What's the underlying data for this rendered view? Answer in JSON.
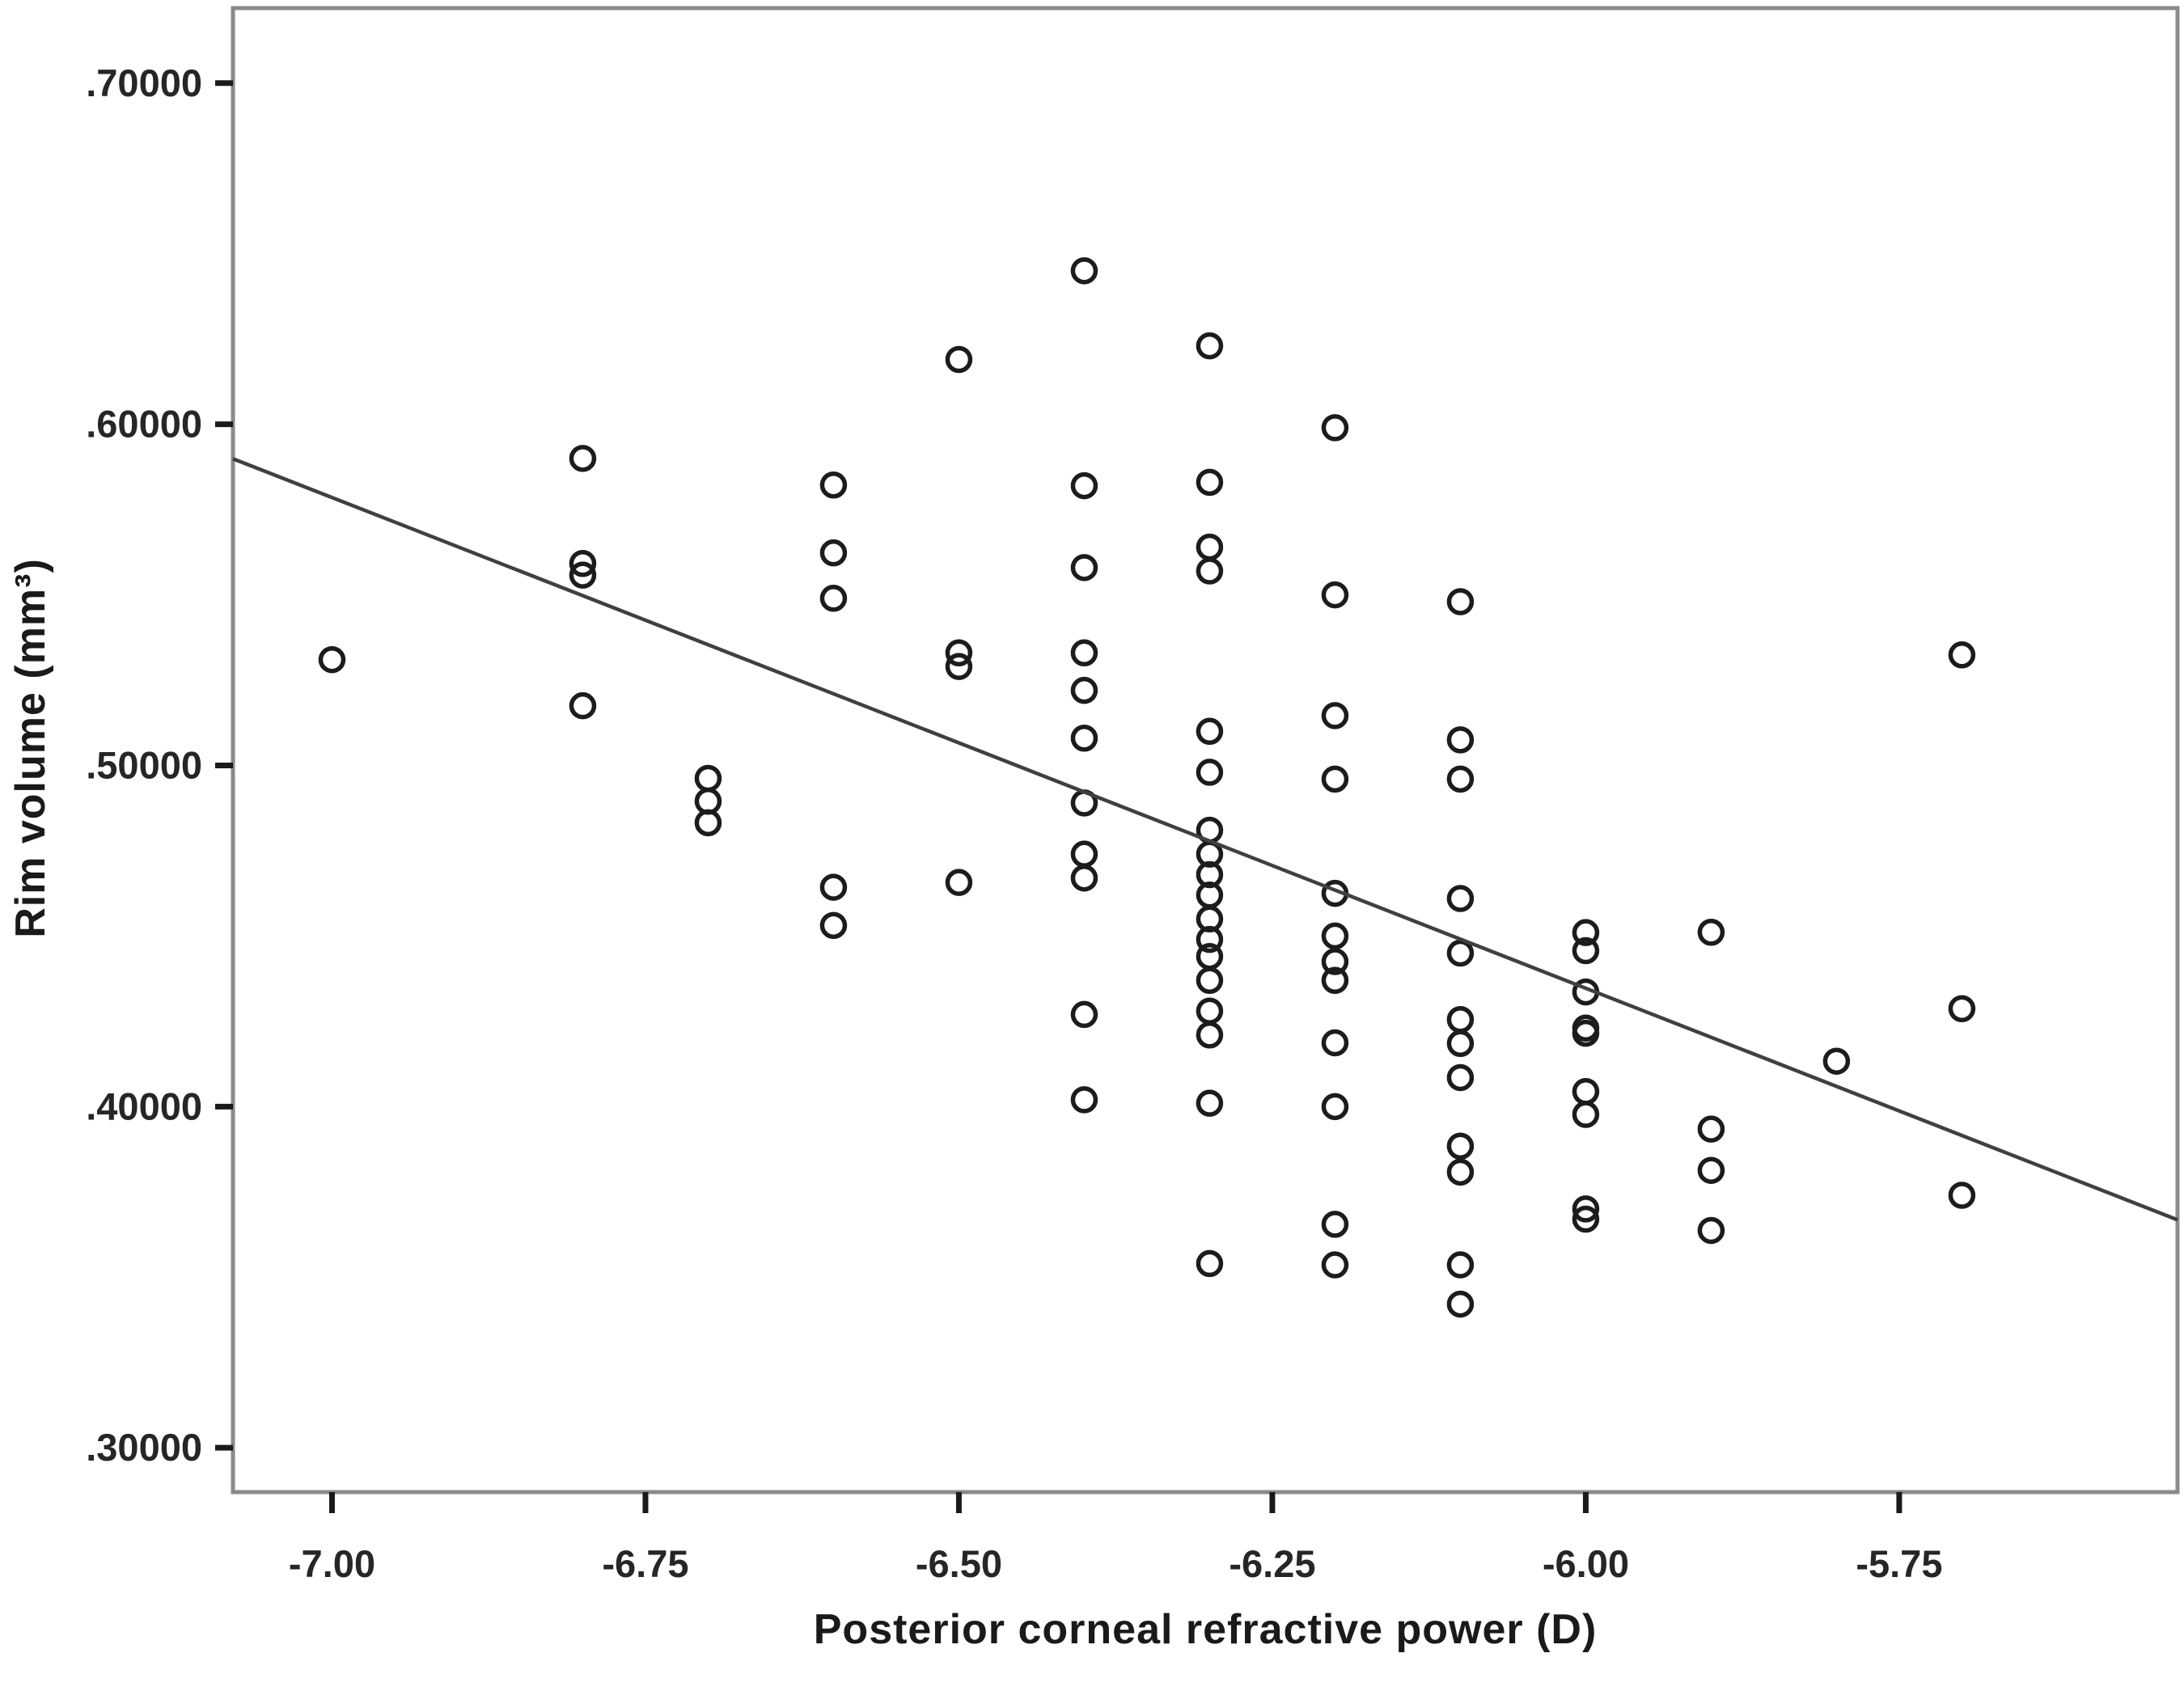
{
  "chart_data": {
    "type": "scatter",
    "title": "",
    "xlabel": "Posterior corneal refractive power (D)",
    "ylabel": "Rim volume (mm³)",
    "grid": false,
    "legend": false,
    "marker": "open-circle",
    "x_axis": {
      "range": [
        -7.079,
        -5.528
      ],
      "ticks": [
        -7.0,
        -6.75,
        -6.5,
        -6.25,
        -6.0,
        -5.75
      ],
      "tick_labels": [
        "-7.00",
        "-6.75",
        "-6.50",
        "-6.25",
        "-6.00",
        "-5.75"
      ]
    },
    "y_axis": {
      "range": [
        0.287,
        0.722
      ],
      "ticks": [
        0.7,
        0.6,
        0.5,
        0.4,
        0.3
      ],
      "tick_labels": [
        ".70000",
        ".60000",
        ".50000",
        ".40000",
        ".30000"
      ]
    },
    "fit_line": {
      "x1": -7.079,
      "y1": 0.5899,
      "x2": -5.528,
      "y2": 0.3668
    },
    "points": [
      [
        -7.0,
        0.531
      ],
      [
        -6.8,
        0.59
      ],
      [
        -6.8,
        0.5592
      ],
      [
        -6.8,
        0.5558
      ],
      [
        -6.8,
        0.5175
      ],
      [
        -6.7,
        0.4962
      ],
      [
        -6.7,
        0.4895
      ],
      [
        -6.7,
        0.4832
      ],
      [
        -6.6,
        0.5822
      ],
      [
        -6.6,
        0.5623
      ],
      [
        -6.6,
        0.549
      ],
      [
        -6.6,
        0.4643
      ],
      [
        -6.6,
        0.4531
      ],
      [
        -6.5,
        0.619
      ],
      [
        -6.5,
        0.533
      ],
      [
        -6.5,
        0.529
      ],
      [
        -6.5,
        0.4657
      ],
      [
        -6.4,
        0.645
      ],
      [
        -6.4,
        0.582
      ],
      [
        -6.4,
        0.558
      ],
      [
        -6.4,
        0.533
      ],
      [
        -6.4,
        0.522
      ],
      [
        -6.4,
        0.508
      ],
      [
        -6.4,
        0.489
      ],
      [
        -6.4,
        0.474
      ],
      [
        -6.4,
        0.467
      ],
      [
        -6.4,
        0.427
      ],
      [
        -6.4,
        0.402
      ],
      [
        -6.3,
        0.623
      ],
      [
        -6.3,
        0.583
      ],
      [
        -6.3,
        0.564
      ],
      [
        -6.3,
        0.557
      ],
      [
        -6.3,
        0.51
      ],
      [
        -6.3,
        0.498
      ],
      [
        -6.3,
        0.481
      ],
      [
        -6.3,
        0.474
      ],
      [
        -6.3,
        0.468
      ],
      [
        -6.3,
        0.462
      ],
      [
        -6.3,
        0.455
      ],
      [
        -6.3,
        0.449
      ],
      [
        -6.3,
        0.444
      ],
      [
        -6.3,
        0.437
      ],
      [
        -6.3,
        0.428
      ],
      [
        -6.3,
        0.421
      ],
      [
        -6.3,
        0.401
      ],
      [
        -6.3,
        0.354
      ],
      [
        -6.2,
        0.599
      ],
      [
        -6.2,
        0.55
      ],
      [
        -6.2,
        0.5146
      ],
      [
        -6.2,
        0.496
      ],
      [
        -6.2,
        0.4625
      ],
      [
        -6.2,
        0.45
      ],
      [
        -6.2,
        0.4425
      ],
      [
        -6.2,
        0.437
      ],
      [
        -6.2,
        0.4187
      ],
      [
        -6.2,
        0.4
      ],
      [
        -6.2,
        0.3655
      ],
      [
        -6.2,
        0.3536
      ],
      [
        -6.1,
        0.548
      ],
      [
        -6.1,
        0.5075
      ],
      [
        -6.1,
        0.496
      ],
      [
        -6.1,
        0.461
      ],
      [
        -6.1,
        0.445
      ],
      [
        -6.1,
        0.4255
      ],
      [
        -6.1,
        0.4185
      ],
      [
        -6.1,
        0.4085
      ],
      [
        -6.1,
        0.3884
      ],
      [
        -6.1,
        0.3808
      ],
      [
        -6.1,
        0.3536
      ],
      [
        -6.1,
        0.3421
      ],
      [
        -6.0,
        0.451
      ],
      [
        -6.0,
        0.4457
      ],
      [
        -6.0,
        0.4336
      ],
      [
        -6.0,
        0.423
      ],
      [
        -6.0,
        0.4215
      ],
      [
        -6.0,
        0.4044
      ],
      [
        -6.0,
        0.3977
      ],
      [
        -6.0,
        0.37
      ],
      [
        -6.0,
        0.367
      ],
      [
        -5.9,
        0.4511
      ],
      [
        -5.9,
        0.3934
      ],
      [
        -5.9,
        0.3813
      ],
      [
        -5.9,
        0.3637
      ],
      [
        -5.8,
        0.4133
      ],
      [
        -5.7,
        0.5324
      ],
      [
        -5.7,
        0.4287
      ],
      [
        -5.7,
        0.374
      ]
    ]
  },
  "colors": {
    "background": "#ffffff",
    "frame": "#8a8a8a",
    "tick": "#1a1a1a",
    "tick_label": "#262626",
    "marker": "#1c1c1c",
    "fit_line": "#404040",
    "axis_title": "#1a1a1a"
  }
}
